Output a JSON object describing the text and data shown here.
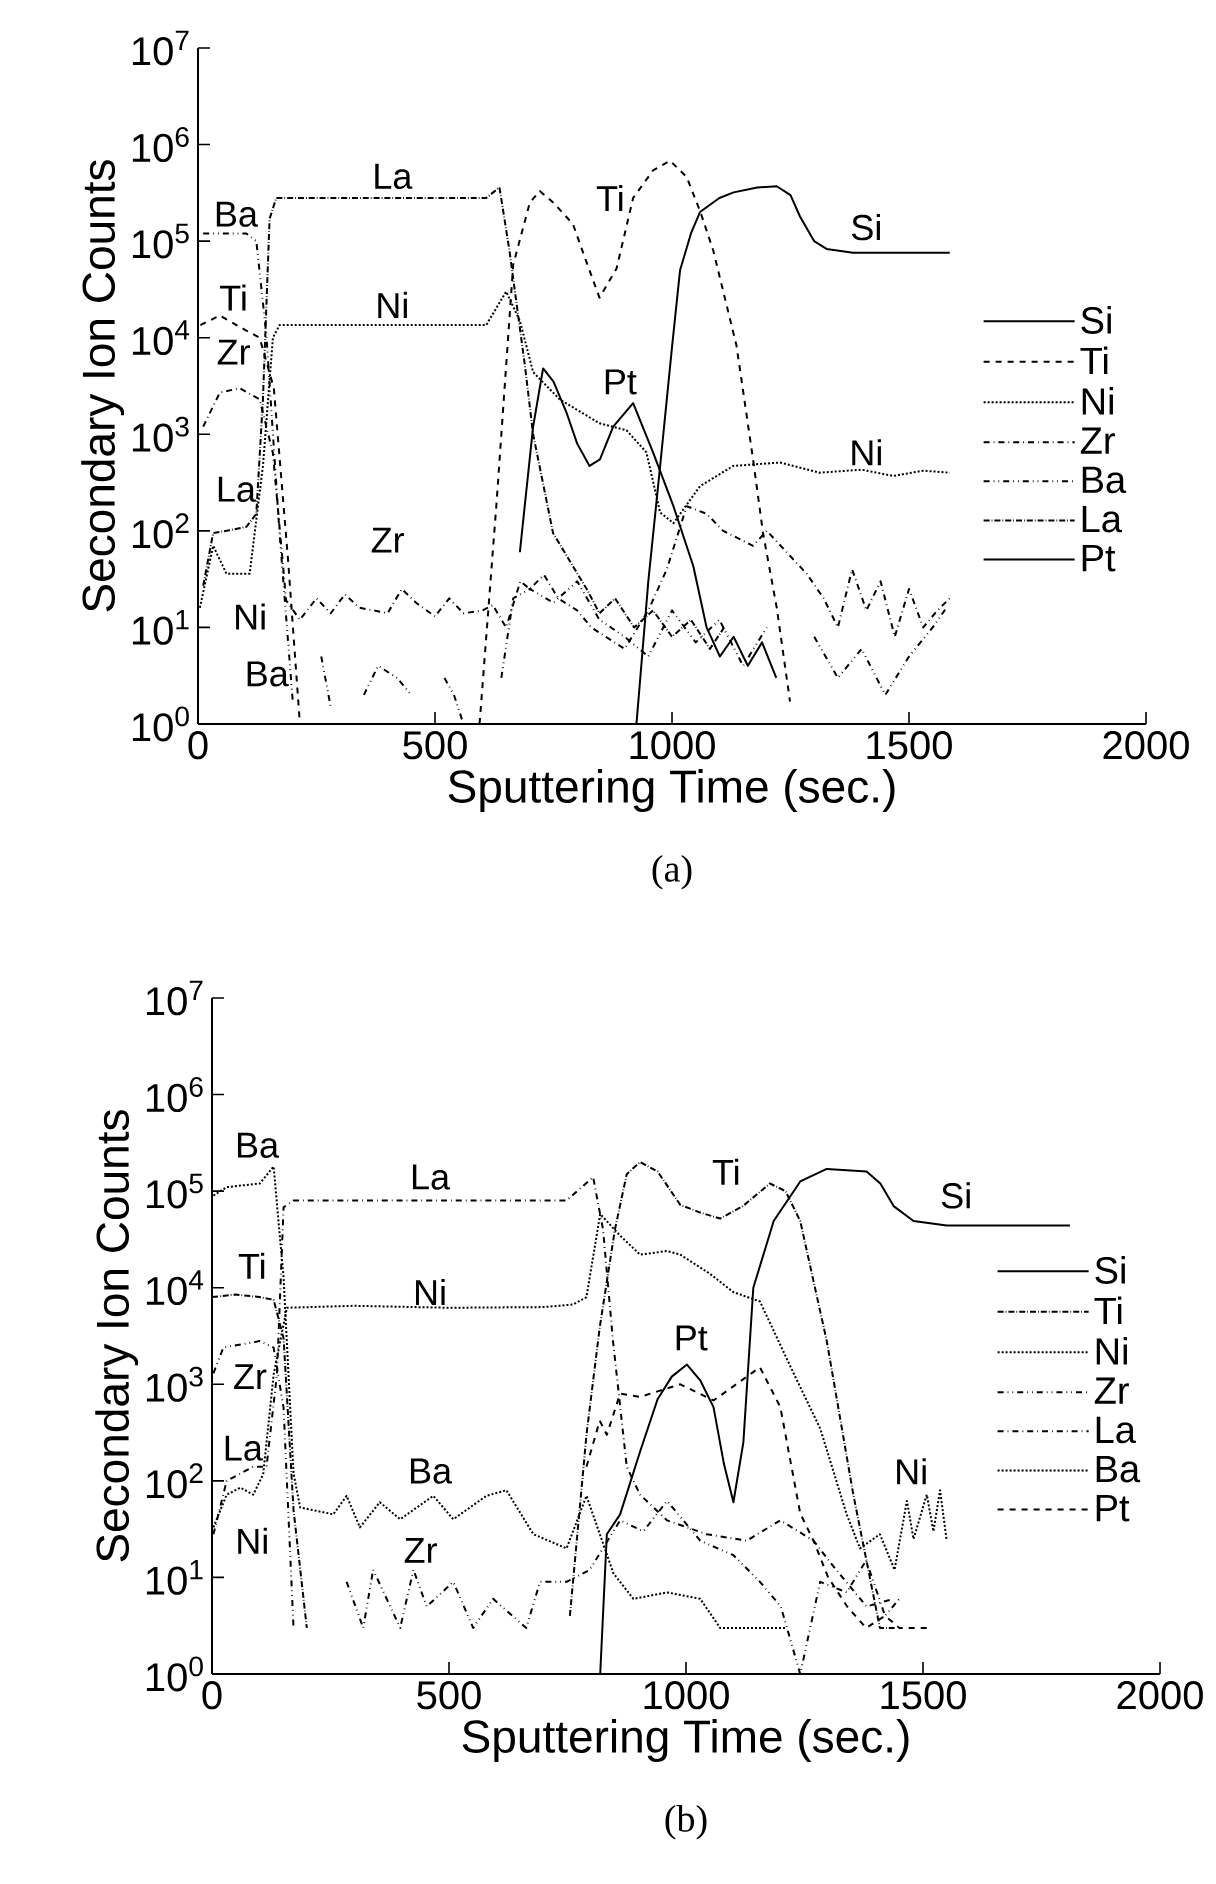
{
  "chart_data": [
    {
      "type": "line",
      "xlabel": "Sputtering Time (sec.)",
      "ylabel": "Secondary Ion Counts",
      "log": "y",
      "legend": "right",
      "xlim": [
        0,
        2000
      ],
      "ylim": [
        1,
        10000000
      ],
      "xticks": [
        0,
        500,
        1000,
        1500,
        2000
      ],
      "yticks": [
        {
          "value": 1,
          "label": "10$^{0}$"
        },
        {
          "value": 10,
          "label": "10$^{1}$"
        },
        {
          "value": 100,
          "label": "10$^{2}$"
        },
        {
          "value": 1000,
          "label": "10$^{3}$"
        },
        {
          "value": 10000,
          "label": "10$^{4}$"
        },
        {
          "value": 100000,
          "label": "10$^{5}$"
        },
        {
          "value": 1000000,
          "label": "10$^{6}$"
        },
        {
          "value": 10000000,
          "label": "10$^{7}$"
        }
      ],
      "series": [
        {
          "name": "Si",
          "color": "#000000",
          "line_style": "solid",
          "x": [
            925,
            950,
            975,
            1000,
            1017,
            1040,
            1059,
            1100,
            1130,
            1180,
            1221,
            1250,
            1270,
            1300,
            1326,
            1382,
            1450,
            1586
          ],
          "values": [
            1,
            30,
            470,
            8000,
            50000,
            120000,
            200000,
            280000,
            320000,
            360000,
            370000,
            300000,
            180000,
            100000,
            83000,
            76000,
            76000,
            76000
          ]
        },
        {
          "name": "Ti",
          "color": "#000000",
          "line_style": "dashed",
          "x": [
            5,
            46,
            100,
            130,
            160,
            190,
            215,
            400,
            594,
            630,
            665,
            700,
            721,
            750,
            791,
            820,
            847,
            883,
            918,
            960,
            996,
            1031,
            1060,
            1087,
            1136,
            1171,
            1192,
            1221,
            1249
          ],
          "values": [
            13500,
            17000,
            12000,
            10000,
            3000,
            50,
            1,
            null,
            1,
            200,
            57000,
            250000,
            330000,
            250000,
            150000,
            60000,
            26000,
            52000,
            280000,
            540000,
            680000,
            460000,
            200000,
            80000,
            8300,
            550,
            95,
            16,
            1.7
          ]
        },
        {
          "name": "Ni",
          "color": "#000000",
          "line_style": "dotted",
          "x": [
            4,
            32,
            60,
            109,
            137,
            158,
            172,
            300,
            450,
            608,
            650,
            679,
            707,
            763,
            847,
            904,
            946,
            975,
            1003,
            1059,
            1129,
            1228,
            1312,
            1400,
            1467,
            1530,
            1586
          ],
          "values": [
            16,
            70,
            36,
            36,
            470,
            10000,
            13500,
            13500,
            13500,
            13500,
            30000,
            15000,
            4400,
            2300,
            1300,
            1100,
            650,
            155,
            120,
            290,
            470,
            510,
            400,
            430,
            370,
            420,
            400
          ]
        },
        {
          "name": "Zr",
          "color": "#000000",
          "line_style": "dashdot",
          "x": [
            11,
            46,
            88,
            130,
            158,
            186,
            215,
            250,
            280,
            310,
            340,
            370,
            400,
            430,
            460,
            500,
            530,
            560,
            600,
            622,
            650,
            680,
            700,
            730,
            760,
            800,
            830,
            860,
            900,
            950,
            989,
            1031,
            1073,
            1108,
            1171,
            1200,
            1242,
            1284,
            1320,
            1350,
            1380,
            1410,
            1440,
            1470,
            1500,
            1530,
            1560,
            1586
          ],
          "values": [
            1200,
            2700,
            3000,
            2300,
            640,
            19,
            12,
            20,
            14,
            22,
            16,
            15,
            14,
            25,
            18,
            13,
            20,
            14,
            15,
            17,
            10,
            30,
            25,
            35,
            20,
            15,
            10,
            8,
            6,
            15,
            40,
            180,
            150,
            100,
            70,
            100,
            60,
            36,
            20,
            10,
            40,
            15,
            30,
            8,
            25,
            10,
            15,
            20
          ]
        },
        {
          "name": "Ba",
          "color": "#000000",
          "line_style": "dashdotdot",
          "x": [
            11,
            102,
            123,
            144,
            172,
            200,
            230,
            260,
            280,
            300,
            350,
            380,
            420,
            450,
            480,
            520,
            540,
            560,
            600,
            640,
            665,
            700,
            750,
            800,
            847,
            900,
            950,
            1000,
            1050,
            1100,
            1150,
            1200,
            1250,
            1300,
            1350,
            1400,
            1450,
            1500,
            1550,
            1579
          ],
          "values": [
            120000,
            120000,
            100000,
            11000,
            95,
            1.7,
            null,
            5,
            1.5,
            null,
            2,
            4,
            3,
            2,
            null,
            3,
            2,
            1,
            null,
            3,
            20,
            25,
            18,
            30,
            12,
            8,
            5,
            15,
            7,
            12,
            4,
            10,
            null,
            8,
            3,
            6,
            2,
            5,
            10,
            16
          ]
        },
        {
          "name": "La",
          "color": "#000000",
          "line_style": "densedashdot",
          "x": [
            11,
            32,
            60,
            102,
            123,
            137,
            151,
            165,
            300,
            450,
            608,
            636,
            657,
            690,
            707,
            749,
            791,
            820,
            847,
            880,
            920,
            960,
            1000,
            1040,
            1080,
            1110
          ],
          "values": [
            27,
            95,
            100,
            110,
            150,
            2300,
            170000,
            280000,
            280000,
            280000,
            280000,
            360000,
            80000,
            5000,
            1000,
            95,
            43,
            25,
            14,
            20,
            10,
            15,
            8,
            12,
            6,
            10
          ]
        },
        {
          "name": "Pt",
          "color": "#000000",
          "line_style": "solid",
          "x": [
            679,
            707,
            728,
            750,
            777,
            800,
            826,
            848,
            876,
            918,
            960,
            1003,
            1045,
            1073,
            1101,
            1130,
            1160,
            1190,
            1220
          ],
          "values": [
            60,
            1200,
            4800,
            3500,
            1700,
            800,
            470,
            550,
            1200,
            2100,
            650,
            180,
            43,
            10,
            5,
            8,
            4,
            7,
            3
          ]
        }
      ],
      "annotations": [
        "(a)",
        "Ba",
        "La",
        "Ti",
        "Si",
        "Ti",
        "Ni",
        "Zr",
        "Pt",
        "Ni",
        "La",
        "Zr",
        "Ni",
        "Ba"
      ]
    },
    {
      "type": "line",
      "xlabel": "Sputtering Time (sec.)",
      "ylabel": "Secondary Ion Counts",
      "log": "y",
      "legend": "right",
      "xlim": [
        0,
        2000
      ],
      "ylim": [
        1,
        10000000
      ],
      "xticks": [
        0,
        500,
        1000,
        1500,
        2000
      ],
      "yticks": [
        {
          "value": 1,
          "label": "10$^{0}$"
        },
        {
          "value": 10,
          "label": "10$^{1}$"
        },
        {
          "value": 100,
          "label": "10$^{2}$"
        },
        {
          "value": 1000,
          "label": "10$^{3}$"
        },
        {
          "value": 10000,
          "label": "10$^{4}$"
        },
        {
          "value": 100000,
          "label": "10$^{5}$"
        },
        {
          "value": 1000000,
          "label": "10$^{6}$"
        },
        {
          "value": 10000000,
          "label": "10$^{7}$"
        }
      ],
      "series": [
        {
          "name": "Si",
          "color": "#000000",
          "line_style": "solid",
          "x": [
            819,
            833,
            861,
            903,
            940,
            970,
            1002,
            1030,
            1058,
            1080,
            1100,
            1121,
            1142,
            1185,
            1241,
            1297,
            1381,
            1410,
            1438,
            1480,
            1550,
            1810
          ],
          "values": [
            1,
            28,
            45,
            200,
            700,
            1200,
            1600,
            1100,
            580,
            150,
            60,
            250,
            10000,
            49000,
            126000,
            170000,
            160000,
            120000,
            70000,
            49000,
            44000,
            44000
          ]
        },
        {
          "name": "Ti",
          "color": "#000000",
          "line_style": "densedashdot",
          "x": [
            0,
            50,
            100,
            130,
            151,
            172,
            200,
            400,
            755,
            790,
            818,
            850,
            875,
            903,
            940,
            988,
            1030,
            1072,
            1120,
            1177,
            1210,
            1241,
            1297,
            1353,
            1409,
            1440
          ],
          "values": [
            8000,
            8500,
            8000,
            7500,
            3000,
            50,
            3,
            null,
            4,
            300,
            3900,
            40000,
            150000,
            200000,
            160000,
            72000,
            60000,
            52000,
            70000,
            120000,
            100000,
            49000,
            2800,
            72,
            3,
            3
          ]
        },
        {
          "name": "Ni",
          "color": "#000000",
          "line_style": "dotted",
          "x": [
            3,
            31,
            60,
            87,
            108,
            130,
            158,
            300,
            500,
            700,
            762,
            790,
            819,
            860,
            903,
            960,
            988,
            1050,
            1100,
            1156,
            1227,
            1283,
            1339,
            1367,
            1409,
            1440,
            1466,
            1480,
            1508,
            1522,
            1536,
            1550
          ],
          "values": [
            33,
            72,
            85,
            72,
            117,
            1260,
            6200,
            6500,
            6200,
            6300,
            6700,
            8000,
            58000,
            35000,
            22000,
            24000,
            22000,
            14000,
            9000,
            7200,
            1300,
            350,
            45,
            20,
            28,
            12,
            62,
            25,
            72,
            30,
            80,
            24
          ]
        },
        {
          "name": "Zr",
          "color": "#000000",
          "line_style": "dashdotdot",
          "x": [
            3,
            24,
            101,
            130,
            151,
            172,
            220,
            284,
            319,
            340,
            397,
            425,
            453,
            509,
            551,
            593,
            663,
            692,
            748,
            797,
            861,
            910,
            960,
            1030,
            1100,
            1156,
            1200,
            1241,
            1283,
            1339,
            1380,
            1420,
            1450
          ],
          "values": [
            1300,
            2400,
            2800,
            2400,
            570,
            3,
            null,
            9,
            3,
            12,
            3,
            12,
            5,
            9,
            3,
            6,
            3,
            9,
            9,
            12,
            39,
            30,
            62,
            24,
            17,
            9,
            5,
            1,
            9,
            7,
            15,
            4,
            6
          ]
        },
        {
          "name": "La",
          "color": "#000000",
          "line_style": "dashdot",
          "x": [
            3,
            31,
            87,
            115,
            137,
            151,
            172,
            400,
            600,
            748,
            804,
            825,
            846,
            875,
            903,
            960,
            1044,
            1128,
            1199,
            1269,
            1311,
            1381,
            1438
          ],
          "values": [
            28,
            100,
            140,
            140,
            1260,
            68000,
            80000,
            80000,
            80000,
            80000,
            140000,
            40000,
            2800,
            140,
            72,
            39,
            28,
            24,
            39,
            24,
            13,
            5,
            6
          ]
        },
        {
          "name": "Ba",
          "color": "#000000",
          "line_style": "dotted",
          "x": [
            3,
            31,
            101,
            130,
            151,
            172,
            186,
            256,
            284,
            312,
            354,
            397,
            467,
            509,
            579,
            621,
            678,
            748,
            790,
            847,
            889,
            960,
            1030,
            1072,
            1110,
            1150,
            1213
          ],
          "values": [
            90000,
            110000,
            120000,
            180000,
            12600,
            120,
            53,
            45,
            70,
            33,
            60,
            40,
            70,
            40,
            70,
            80,
            28,
            20,
            70,
            11,
            6,
            7,
            6,
            3,
            3,
            3,
            3
          ]
        },
        {
          "name": "Pt",
          "color": "#000000",
          "line_style": "dashed",
          "x": [
            790,
            818,
            833,
            861,
            903,
            988,
            1058,
            1156,
            1199,
            1241,
            1269,
            1300,
            1340,
            1380,
            1420,
            1450,
            1480,
            1515
          ],
          "values": [
            140,
            420,
            300,
            800,
            740,
            1000,
            680,
            1500,
            580,
            46,
            24,
            10,
            5,
            3,
            4,
            3,
            3,
            3
          ]
        }
      ],
      "annotations": [
        "(b)",
        "Ba",
        "La",
        "Ti",
        "Si",
        "Ti",
        "Ni",
        "Pt",
        "Zr",
        "La",
        "Ba",
        "Ni",
        "Ni",
        "Zr"
      ]
    }
  ]
}
